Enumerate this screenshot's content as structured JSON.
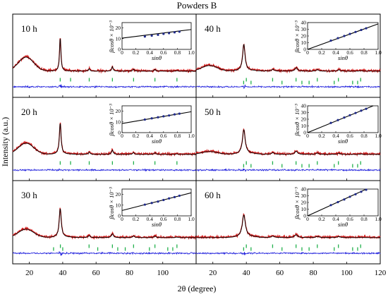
{
  "chart_data": {
    "type": "line",
    "title": "Powders B",
    "xlabel": "2θ (degree)",
    "ylabel": "Intensity (a.u.)",
    "xlim": [
      10,
      120
    ],
    "xticks": [
      20,
      40,
      60,
      80,
      100,
      120
    ],
    "grid": false,
    "inset": {
      "type": "scatter",
      "xlabel": "sinθ",
      "ylabel": "βcosθ × 10⁻³",
      "xlim": [
        0,
        1.0
      ],
      "xticks": [
        "0",
        "0.2",
        "0.4",
        "0.6",
        "0.8",
        "1.0"
      ],
      "yticks_20": [
        "0",
        "10",
        "20"
      ],
      "yticks_40": [
        "0",
        "10",
        "20",
        "30",
        "40"
      ]
    },
    "panels": [
      {
        "label": "10 h",
        "inset": {
          "ylim": [
            0,
            25
          ],
          "fit": [
            10.5,
            18.5
          ],
          "points": [
            [
              0.33,
              12.0
            ],
            [
              0.43,
              12.8
            ],
            [
              0.52,
              13.6
            ],
            [
              0.6,
              14.5
            ],
            [
              0.68,
              15.1
            ],
            [
              0.76,
              15.9
            ],
            [
              0.83,
              16.5
            ]
          ]
        },
        "ticks": [
          {
            "x": 38.5,
            "row": 0
          },
          {
            "x": 44.7,
            "row": 0
          },
          {
            "x": 55.9,
            "row": 0
          },
          {
            "x": 69.8,
            "row": 0
          },
          {
            "x": 82.5,
            "row": 0
          },
          {
            "x": 95.3,
            "row": 0
          },
          {
            "x": 108.5,
            "row": 0
          }
        ]
      },
      {
        "label": "40 h",
        "inset": {
          "ylim": [
            0,
            40
          ],
          "fit": [
            0,
            38
          ],
          "points": [
            [
              0.33,
              13.0
            ],
            [
              0.43,
              16.8
            ],
            [
              0.52,
              20.0
            ],
            [
              0.6,
              23.0
            ],
            [
              0.68,
              26.0
            ],
            [
              0.76,
              29.0
            ],
            [
              0.83,
              31.5
            ]
          ]
        },
        "ticks": [
          {
            "x": 38.4,
            "row": 1
          },
          {
            "x": 40.0,
            "row": 0
          },
          {
            "x": 42.8,
            "row": 1
          },
          {
            "x": 55.7,
            "row": 0
          },
          {
            "x": 61.3,
            "row": 1
          },
          {
            "x": 69.7,
            "row": 0
          },
          {
            "x": 73.2,
            "row": 1
          },
          {
            "x": 77.5,
            "row": 1
          },
          {
            "x": 82.4,
            "row": 0
          },
          {
            "x": 92.5,
            "row": 1
          },
          {
            "x": 95.0,
            "row": 0
          },
          {
            "x": 103.5,
            "row": 1
          },
          {
            "x": 106.5,
            "row": 1
          },
          {
            "x": 108.3,
            "row": 0
          }
        ]
      },
      {
        "label": "20 h",
        "inset": {
          "ylim": [
            0,
            25
          ],
          "fit": [
            8.5,
            19.5
          ],
          "points": [
            [
              0.33,
              12.2
            ],
            [
              0.43,
              13.3
            ],
            [
              0.52,
              14.3
            ],
            [
              0.6,
              15.2
            ],
            [
              0.68,
              16.0
            ],
            [
              0.76,
              17.0
            ],
            [
              0.83,
              17.7
            ]
          ]
        },
        "ticks": [
          {
            "x": 38.5,
            "row": 0
          },
          {
            "x": 44.7,
            "row": 0
          },
          {
            "x": 55.9,
            "row": 0
          },
          {
            "x": 69.8,
            "row": 0
          },
          {
            "x": 82.5,
            "row": 0
          },
          {
            "x": 95.3,
            "row": 0
          },
          {
            "x": 108.5,
            "row": 0
          }
        ]
      },
      {
        "label": "50 h",
        "inset": {
          "ylim": [
            0,
            40
          ],
          "fit": [
            0,
            43
          ],
          "points": [
            [
              0.33,
              14.5
            ],
            [
              0.43,
              18.7
            ],
            [
              0.52,
              22.5
            ],
            [
              0.6,
              26.0
            ],
            [
              0.68,
              29.3
            ],
            [
              0.76,
              32.8
            ],
            [
              0.83,
              35.5
            ]
          ]
        },
        "ticks": [
          {
            "x": 38.4,
            "row": 1
          },
          {
            "x": 40.0,
            "row": 0
          },
          {
            "x": 42.8,
            "row": 1
          },
          {
            "x": 55.7,
            "row": 0
          },
          {
            "x": 61.3,
            "row": 1
          },
          {
            "x": 69.7,
            "row": 0
          },
          {
            "x": 73.2,
            "row": 1
          },
          {
            "x": 77.5,
            "row": 1
          },
          {
            "x": 82.4,
            "row": 0
          },
          {
            "x": 92.5,
            "row": 1
          },
          {
            "x": 95.0,
            "row": 0
          },
          {
            "x": 103.5,
            "row": 1
          },
          {
            "x": 106.5,
            "row": 1
          },
          {
            "x": 108.3,
            "row": 0
          }
        ]
      },
      {
        "label": "30 h",
        "inset": {
          "ylim": [
            0,
            25
          ],
          "fit": [
            5.0,
            21.5
          ],
          "points": [
            [
              0.33,
              10.5
            ],
            [
              0.43,
              12.0
            ],
            [
              0.52,
              13.3
            ],
            [
              0.6,
              14.8
            ],
            [
              0.68,
              16.3
            ],
            [
              0.76,
              17.5
            ],
            [
              0.83,
              18.8
            ]
          ]
        },
        "ticks": [
          {
            "x": 34.5,
            "row": 1
          },
          {
            "x": 38.6,
            "row": 0
          },
          {
            "x": 40.0,
            "row": 1
          },
          {
            "x": 55.8,
            "row": 0
          },
          {
            "x": 61.0,
            "row": 1
          },
          {
            "x": 69.8,
            "row": 0
          },
          {
            "x": 73.0,
            "row": 1
          },
          {
            "x": 77.5,
            "row": 1
          },
          {
            "x": 82.5,
            "row": 0
          },
          {
            "x": 92.0,
            "row": 1
          },
          {
            "x": 95.3,
            "row": 0
          },
          {
            "x": 103.0,
            "row": 1
          },
          {
            "x": 106.0,
            "row": 1
          },
          {
            "x": 108.5,
            "row": 0
          }
        ]
      },
      {
        "label": "60 h",
        "inset": {
          "ylim": [
            0,
            40
          ],
          "fit": [
            0,
            48
          ],
          "points": [
            [
              0.33,
              16.0
            ],
            [
              0.43,
              20.5
            ],
            [
              0.52,
              24.5
            ],
            [
              0.6,
              28.5
            ],
            [
              0.68,
              32.3
            ],
            [
              0.76,
              36.0
            ],
            [
              0.83,
              39.0
            ]
          ]
        },
        "ticks": [
          {
            "x": 38.4,
            "row": 1
          },
          {
            "x": 40.0,
            "row": 0
          },
          {
            "x": 42.8,
            "row": 1
          },
          {
            "x": 55.7,
            "row": 0
          },
          {
            "x": 61.3,
            "row": 1
          },
          {
            "x": 69.7,
            "row": 0
          },
          {
            "x": 73.2,
            "row": 1
          },
          {
            "x": 77.5,
            "row": 1
          },
          {
            "x": 82.4,
            "row": 0
          },
          {
            "x": 92.5,
            "row": 1
          },
          {
            "x": 95.0,
            "row": 0
          },
          {
            "x": 103.5,
            "row": 1
          },
          {
            "x": 106.5,
            "row": 1
          },
          {
            "x": 108.3,
            "row": 0
          }
        ]
      }
    ],
    "colors": {
      "observed": "#d42020",
      "calculated": "#000000",
      "difference": "#1c1cdc",
      "bragg": "#22b14c",
      "fit_point": "#1f2a8a"
    }
  }
}
